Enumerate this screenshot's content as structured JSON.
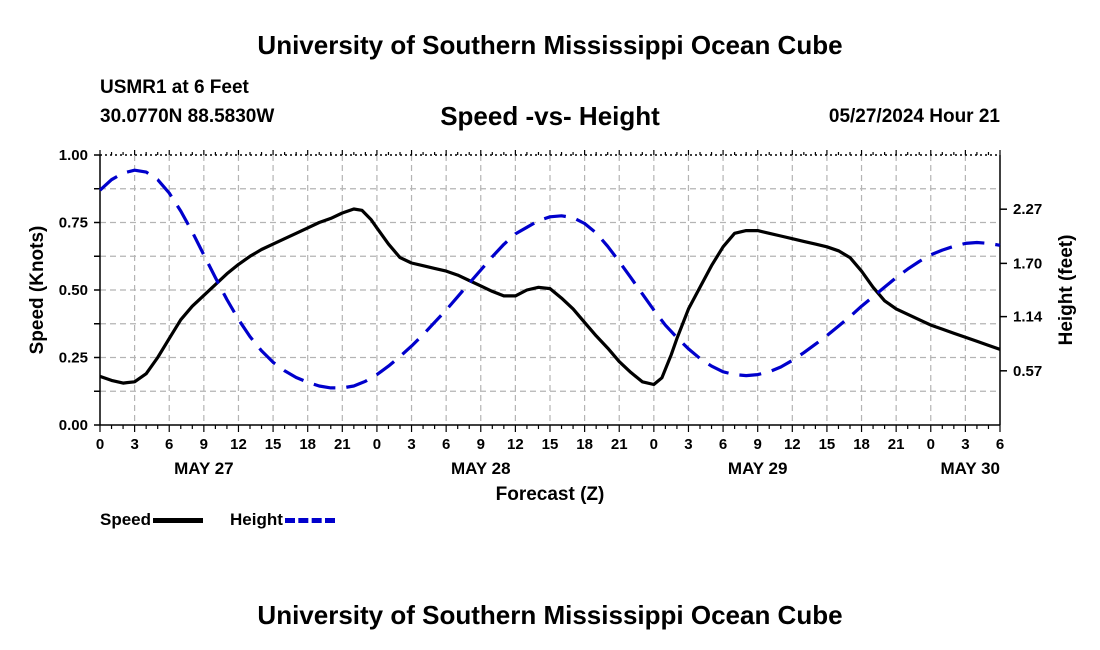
{
  "header": {
    "title": "University of Southern Mississippi Ocean Cube",
    "station": "USMR1 at 6 Feet",
    "coords": "30.0770N  88.5830W",
    "subtitle": "Speed -vs- Height",
    "issued": "05/27/2024 Hour 21",
    "footer": "University of Southern Mississippi Ocean Cube"
  },
  "legend": {
    "speed_label": "Speed",
    "height_label": "Height"
  },
  "colors": {
    "speed": "#000000",
    "height": "#0000cc",
    "grid": "#b4b4b4"
  },
  "chart_data": {
    "type": "line",
    "title": "Speed -vs- Height",
    "xlabel": "Forecast (Z)",
    "ylabel": "Speed (Knots)",
    "y2label": "Height (feet)",
    "x_unit": "hours since May 27 00Z",
    "xlim": [
      0,
      78
    ],
    "ylim": [
      0,
      1.0
    ],
    "y2lim": [
      0,
      2.84
    ],
    "grid": true,
    "legend_position": "bottom-left",
    "x_tick_labels": [
      "0",
      "3",
      "6",
      "9",
      "12",
      "15",
      "18",
      "21",
      "0",
      "3",
      "6",
      "9",
      "12",
      "15",
      "18",
      "21",
      "0",
      "3",
      "6",
      "9",
      "12",
      "15",
      "18",
      "21",
      "0",
      "3",
      "6"
    ],
    "date_labels": [
      {
        "hour": 9,
        "label": "MAY 27"
      },
      {
        "hour": 33,
        "label": "MAY 28"
      },
      {
        "hour": 57,
        "label": "MAY 29"
      },
      {
        "hour": 78,
        "label": "MAY 30"
      }
    ],
    "y_ticks": [
      {
        "value": 0,
        "label": "0.00"
      },
      {
        "value": 0.25,
        "label": "0.25"
      },
      {
        "value": 0.5,
        "label": "0.50"
      },
      {
        "value": 0.75,
        "label": "0.75"
      },
      {
        "value": 1.0,
        "label": "1.00"
      }
    ],
    "y2_ticks": [
      {
        "value": 0.57,
        "label": "0.57"
      },
      {
        "value": 1.14,
        "label": "1.14"
      },
      {
        "value": 1.7,
        "label": "1.70"
      },
      {
        "value": 2.27,
        "label": "2.27"
      }
    ],
    "series": [
      {
        "name": "Speed",
        "axis": "left",
        "style": "solid",
        "points": [
          [
            0,
            0.18
          ],
          [
            1,
            0.165
          ],
          [
            2,
            0.155
          ],
          [
            3,
            0.16
          ],
          [
            4,
            0.19
          ],
          [
            5,
            0.25
          ],
          [
            6,
            0.32
          ],
          [
            7,
            0.39
          ],
          [
            8,
            0.44
          ],
          [
            9,
            0.48
          ],
          [
            10,
            0.52
          ],
          [
            11,
            0.56
          ],
          [
            12,
            0.595
          ],
          [
            13,
            0.625
          ],
          [
            14,
            0.65
          ],
          [
            15,
            0.67
          ],
          [
            16,
            0.69
          ],
          [
            17,
            0.71
          ],
          [
            18,
            0.73
          ],
          [
            19,
            0.75
          ],
          [
            20,
            0.765
          ],
          [
            21,
            0.785
          ],
          [
            22,
            0.8
          ],
          [
            22.7,
            0.795
          ],
          [
            23.5,
            0.76
          ],
          [
            24,
            0.73
          ],
          [
            25,
            0.67
          ],
          [
            26,
            0.62
          ],
          [
            27,
            0.6
          ],
          [
            28,
            0.59
          ],
          [
            29,
            0.58
          ],
          [
            30,
            0.57
          ],
          [
            31,
            0.555
          ],
          [
            32,
            0.535
          ],
          [
            33,
            0.515
          ],
          [
            34,
            0.495
          ],
          [
            35,
            0.478
          ],
          [
            36,
            0.478
          ],
          [
            37,
            0.5
          ],
          [
            38,
            0.51
          ],
          [
            39,
            0.505
          ],
          [
            40,
            0.47
          ],
          [
            41,
            0.43
          ],
          [
            42,
            0.38
          ],
          [
            43,
            0.33
          ],
          [
            44,
            0.285
          ],
          [
            45,
            0.235
          ],
          [
            46,
            0.195
          ],
          [
            47,
            0.16
          ],
          [
            48,
            0.15
          ],
          [
            48.7,
            0.175
          ],
          [
            49.5,
            0.26
          ],
          [
            50,
            0.32
          ],
          [
            51,
            0.43
          ],
          [
            52,
            0.51
          ],
          [
            53,
            0.59
          ],
          [
            54,
            0.66
          ],
          [
            55,
            0.71
          ],
          [
            56,
            0.72
          ],
          [
            57,
            0.72
          ],
          [
            58,
            0.71
          ],
          [
            59,
            0.7
          ],
          [
            60,
            0.69
          ],
          [
            61,
            0.68
          ],
          [
            62,
            0.67
          ],
          [
            63,
            0.66
          ],
          [
            64,
            0.645
          ],
          [
            65,
            0.62
          ],
          [
            66,
            0.57
          ],
          [
            67,
            0.51
          ],
          [
            68,
            0.46
          ],
          [
            69,
            0.43
          ],
          [
            70,
            0.41
          ],
          [
            71,
            0.39
          ],
          [
            72,
            0.37
          ],
          [
            73,
            0.355
          ],
          [
            74,
            0.34
          ],
          [
            75,
            0.325
          ],
          [
            76,
            0.31
          ],
          [
            77,
            0.295
          ],
          [
            78,
            0.28
          ]
        ]
      },
      {
        "name": "Height",
        "axis": "right",
        "style": "dashed",
        "points": [
          [
            0,
            2.47
          ],
          [
            1,
            2.58
          ],
          [
            2,
            2.65
          ],
          [
            3,
            2.68
          ],
          [
            4,
            2.66
          ],
          [
            5,
            2.58
          ],
          [
            6,
            2.44
          ],
          [
            7,
            2.25
          ],
          [
            8,
            2.03
          ],
          [
            9,
            1.79
          ],
          [
            10,
            1.55
          ],
          [
            11,
            1.32
          ],
          [
            12,
            1.11
          ],
          [
            13,
            0.93
          ],
          [
            14,
            0.78
          ],
          [
            15,
            0.66
          ],
          [
            16,
            0.57
          ],
          [
            17,
            0.5
          ],
          [
            18,
            0.45
          ],
          [
            19,
            0.41
          ],
          [
            20,
            0.39
          ],
          [
            21,
            0.39
          ],
          [
            22,
            0.41
          ],
          [
            23,
            0.46
          ],
          [
            24,
            0.53
          ],
          [
            25,
            0.62
          ],
          [
            26,
            0.72
          ],
          [
            27,
            0.83
          ],
          [
            28,
            0.95
          ],
          [
            29,
            1.08
          ],
          [
            30,
            1.21
          ],
          [
            31,
            1.35
          ],
          [
            32,
            1.49
          ],
          [
            33,
            1.63
          ],
          [
            34,
            1.77
          ],
          [
            35,
            1.9
          ],
          [
            36,
            2.01
          ],
          [
            37,
            2.08
          ],
          [
            38,
            2.15
          ],
          [
            39,
            2.19
          ],
          [
            40,
            2.2
          ],
          [
            41,
            2.18
          ],
          [
            42,
            2.12
          ],
          [
            43,
            2.02
          ],
          [
            44,
            1.88
          ],
          [
            45,
            1.72
          ],
          [
            46,
            1.55
          ],
          [
            47,
            1.38
          ],
          [
            48,
            1.21
          ],
          [
            49,
            1.05
          ],
          [
            50,
            0.92
          ],
          [
            51,
            0.8
          ],
          [
            52,
            0.7
          ],
          [
            53,
            0.62
          ],
          [
            54,
            0.56
          ],
          [
            55,
            0.53
          ],
          [
            56,
            0.52
          ],
          [
            57,
            0.53
          ],
          [
            58,
            0.56
          ],
          [
            59,
            0.61
          ],
          [
            60,
            0.68
          ],
          [
            61,
            0.76
          ],
          [
            62,
            0.85
          ],
          [
            63,
            0.94
          ],
          [
            64,
            1.04
          ],
          [
            65,
            1.14
          ],
          [
            66,
            1.25
          ],
          [
            67,
            1.35
          ],
          [
            68,
            1.45
          ],
          [
            69,
            1.55
          ],
          [
            70,
            1.64
          ],
          [
            71,
            1.72
          ],
          [
            72,
            1.79
          ],
          [
            73,
            1.84
          ],
          [
            74,
            1.88
          ],
          [
            75,
            1.91
          ],
          [
            76,
            1.92
          ],
          [
            77,
            1.91
          ],
          [
            78,
            1.89
          ]
        ]
      }
    ]
  }
}
